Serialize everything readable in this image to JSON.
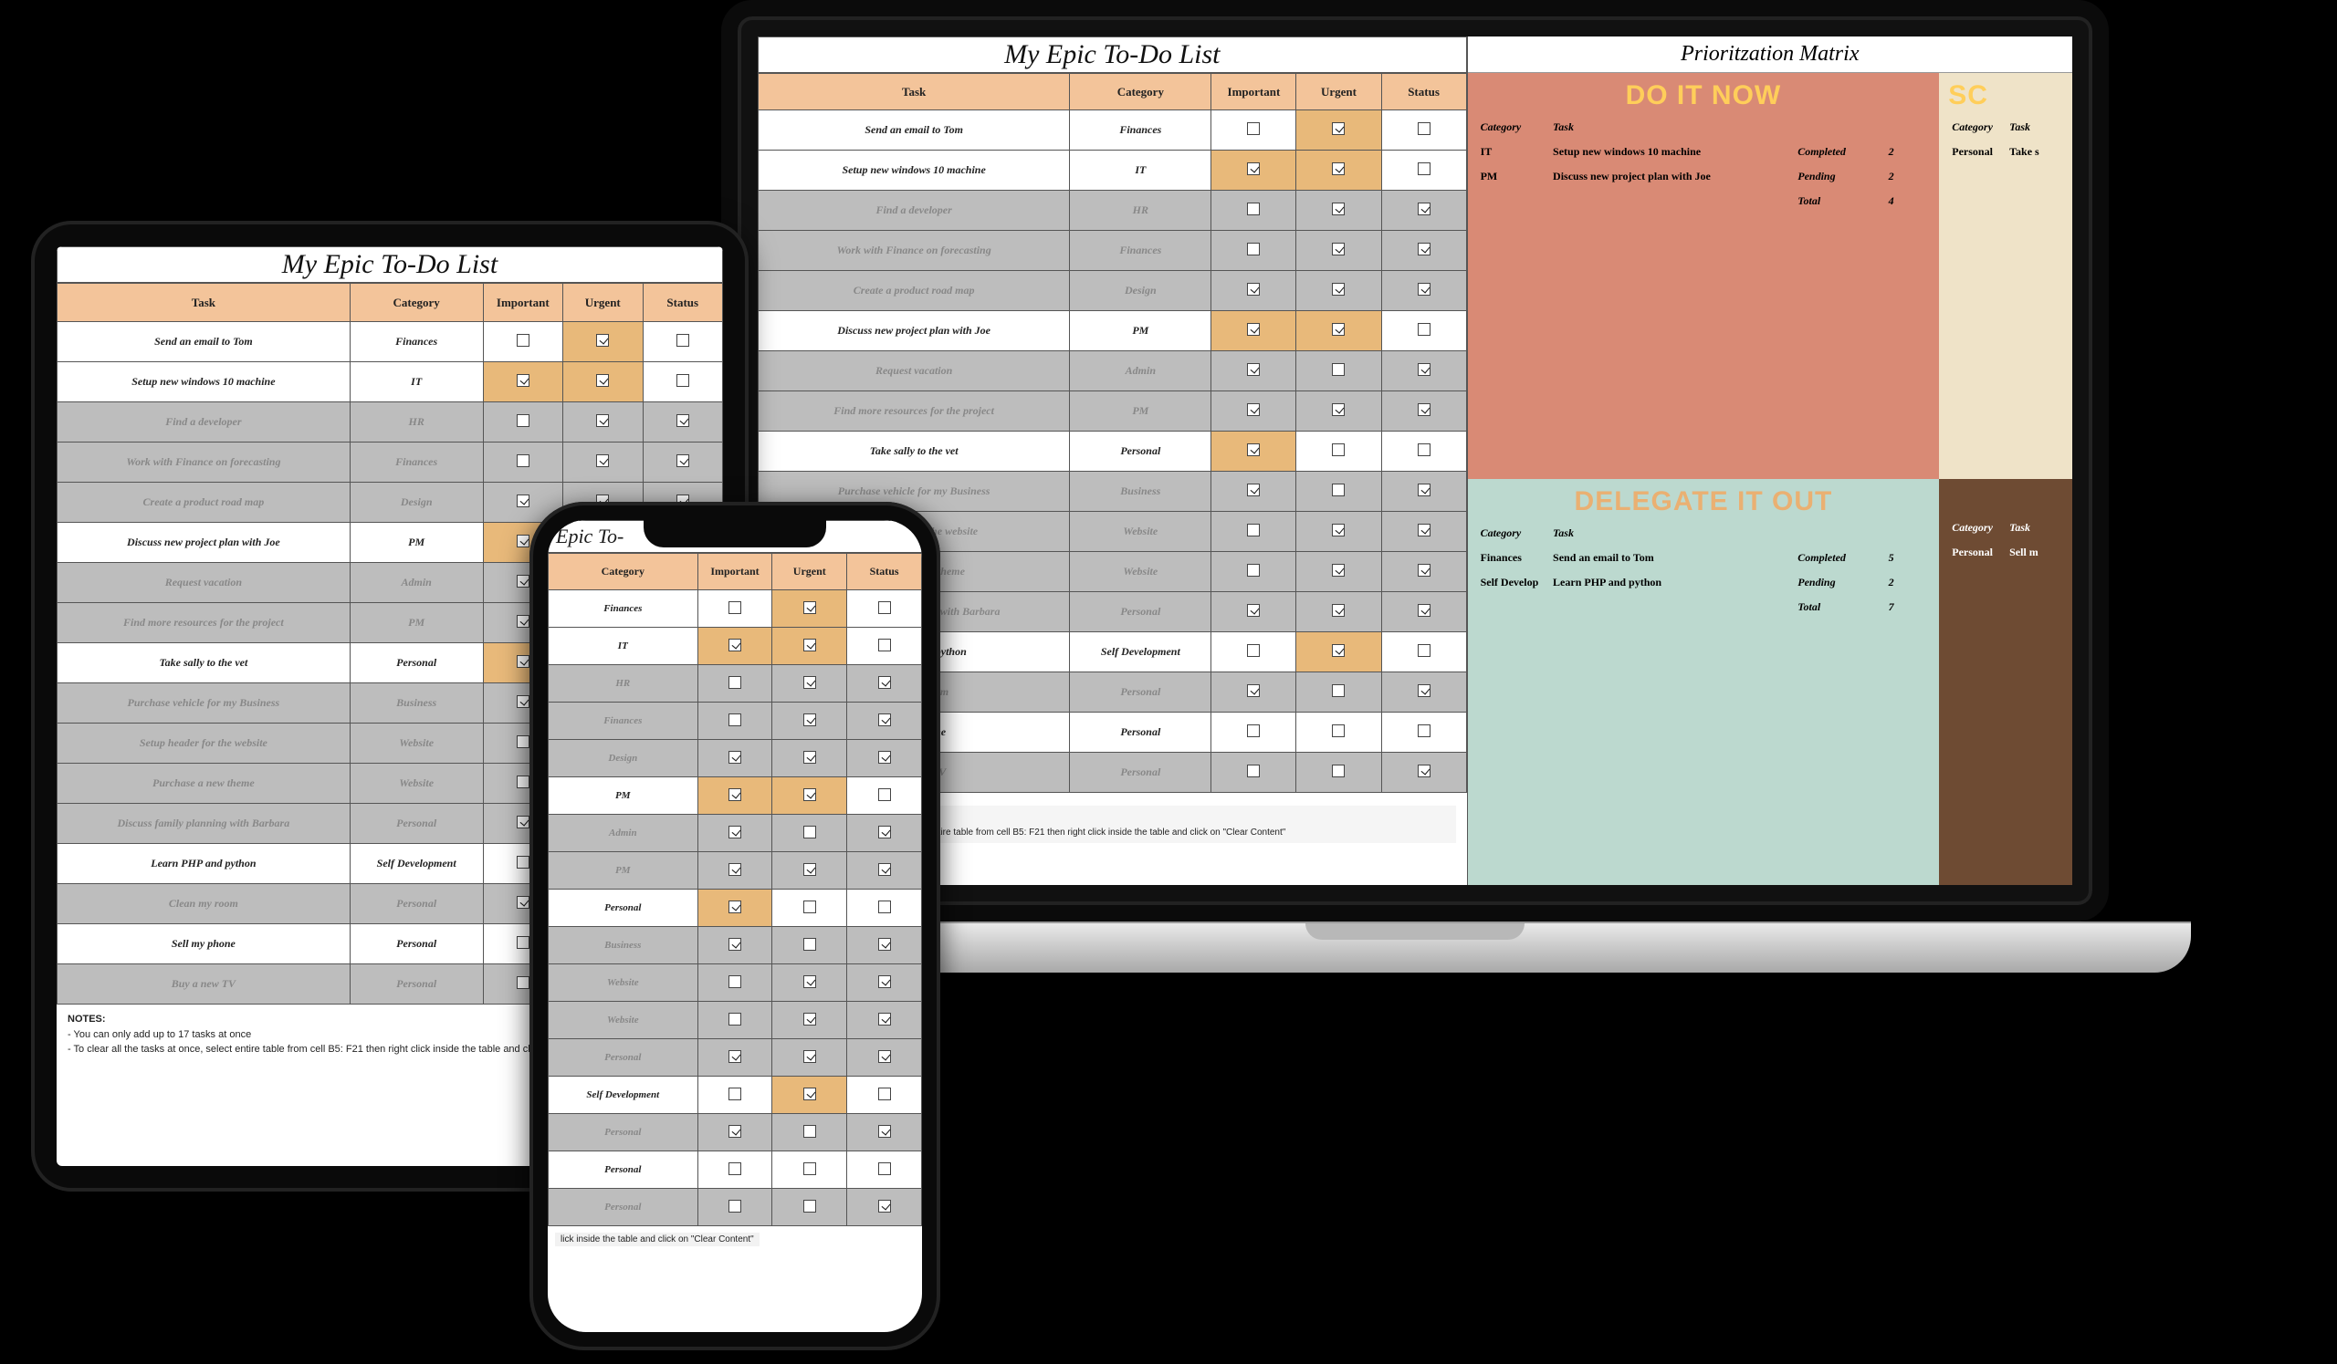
{
  "colors": {
    "header_bg": "#f3c49a",
    "highlight_bg": "#e8b97a",
    "done_bg": "#bdbdbd",
    "quad_do_bg": "#d98a75",
    "quad_do_text": "#ffce5a",
    "quad_delegate_bg": "#bcd9cf",
    "quad_delegate_text": "#eab072",
    "quad_schedule_bg_side": "#efe3c8",
    "quad_side_bottom": "#6e4b33"
  },
  "todo": {
    "title": "My Epic To-Do List",
    "headers": {
      "task": "Task",
      "category": "Category",
      "important": "Important",
      "urgent": "Urgent",
      "status": "Status"
    },
    "col_widths_pct": {
      "task": 44,
      "category": 20,
      "important": 12,
      "urgent": 12,
      "status": 12
    },
    "rows": [
      {
        "task": "Send an email to Tom",
        "category": "Finances",
        "important": false,
        "urgent": true,
        "status": false,
        "done": false
      },
      {
        "task": "Setup new windows 10 machine",
        "category": "IT",
        "important": true,
        "urgent": true,
        "status": false,
        "done": false
      },
      {
        "task": "Find a developer",
        "category": "HR",
        "important": false,
        "urgent": true,
        "status": true,
        "done": true
      },
      {
        "task": "Work with Finance on forecasting",
        "category": "Finances",
        "important": false,
        "urgent": true,
        "status": true,
        "done": true
      },
      {
        "task": "Create a product road map",
        "category": "Design",
        "important": true,
        "urgent": true,
        "status": true,
        "done": true
      },
      {
        "task": "Discuss new project plan with Joe",
        "category": "PM",
        "important": true,
        "urgent": true,
        "status": false,
        "done": false
      },
      {
        "task": "Request vacation",
        "category": "Admin",
        "important": true,
        "urgent": false,
        "status": true,
        "done": true
      },
      {
        "task": "Find more resources for the project",
        "category": "PM",
        "important": true,
        "urgent": true,
        "status": true,
        "done": true
      },
      {
        "task": "Take sally to the vet",
        "category": "Personal",
        "important": true,
        "urgent": false,
        "status": false,
        "done": false
      },
      {
        "task": "Purchase vehicle for my Business",
        "category": "Business",
        "important": true,
        "urgent": false,
        "status": true,
        "done": true
      },
      {
        "task": "Setup header for the website",
        "category": "Website",
        "important": false,
        "urgent": true,
        "status": true,
        "done": true
      },
      {
        "task": "Purchase a new theme",
        "category": "Website",
        "important": false,
        "urgent": true,
        "status": true,
        "done": true
      },
      {
        "task": "Discuss family planning with Barbara",
        "category": "Personal",
        "important": true,
        "urgent": true,
        "status": true,
        "done": true
      },
      {
        "task": "Learn PHP and python",
        "category": "Self Development",
        "important": false,
        "urgent": true,
        "status": false,
        "done": false
      },
      {
        "task": "Clean my room",
        "category": "Personal",
        "important": true,
        "urgent": false,
        "status": true,
        "done": true
      },
      {
        "task": "Sell my phone",
        "category": "Personal",
        "important": false,
        "urgent": false,
        "status": false,
        "done": false
      },
      {
        "task": "Buy a new TV",
        "category": "Personal",
        "important": false,
        "urgent": false,
        "status": true,
        "done": true
      }
    ],
    "notes": {
      "heading": "NOTES:",
      "line1": "- You can only add up to 17 tasks at once",
      "line2": "- To clear all the tasks at once, select entire table from cell B5: F21 then right click  inside the table and click on \"Clear Content\""
    },
    "phone_notes_fragment": "lick  inside the table and click on \"Clear Content\""
  },
  "matrix": {
    "title": "Prioritzation Matrix",
    "headers": {
      "category": "Category",
      "task": "Task",
      "status_completed": "Completed",
      "status_pending": "Pending",
      "total": "Total"
    },
    "do_it_now": {
      "heading": "DO IT NOW",
      "rows": [
        {
          "category": "IT",
          "task": "Setup new windows 10 machine",
          "status": "Completed",
          "num": "2"
        },
        {
          "category": "PM",
          "task": "Discuss new project plan with Joe",
          "status": "Pending",
          "num": "2"
        }
      ],
      "total": {
        "label": "Total",
        "num": "4"
      }
    },
    "delegate": {
      "heading": "DELEGATE IT OUT",
      "rows": [
        {
          "category": "Finances",
          "task": "Send an email to Tom",
          "status": "Completed",
          "num": "5"
        },
        {
          "category": "Self Develop",
          "task": "Learn PHP and python",
          "status": "Pending",
          "num": "2"
        }
      ],
      "total": {
        "label": "Total",
        "num": "7"
      }
    },
    "side_top": {
      "heading_fragment": "SC",
      "rows": [
        {
          "category": "Personal",
          "task_fragment": "Take s"
        }
      ]
    },
    "side_bottom": {
      "rows": [
        {
          "category": "Personal",
          "task_fragment": "Sell m"
        }
      ]
    }
  }
}
